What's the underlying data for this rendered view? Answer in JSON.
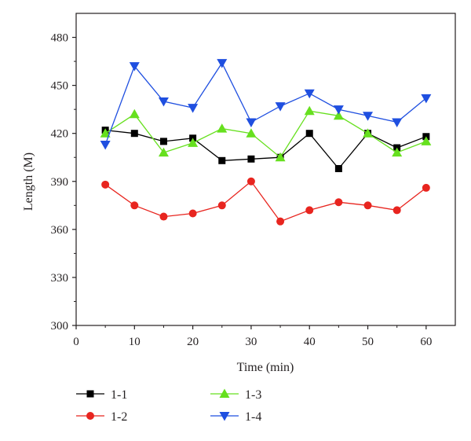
{
  "chart_data": {
    "type": "line",
    "xlabel": "Time (min)",
    "ylabel": "Length (M)",
    "xlim": [
      0,
      65
    ],
    "ylim": [
      300,
      495
    ],
    "x_ticks": [
      0,
      10,
      20,
      30,
      40,
      50,
      60
    ],
    "y_ticks": [
      300,
      330,
      360,
      390,
      420,
      450,
      480
    ],
    "x_tick_labels": [
      "0",
      "10",
      "20",
      "30",
      "40",
      "50",
      "60"
    ],
    "y_tick_labels": [
      "300",
      "330",
      "360",
      "390",
      "420",
      "450",
      "480"
    ],
    "grid": false,
    "legend_position": "bottom",
    "x": [
      5,
      10,
      15,
      20,
      25,
      30,
      35,
      40,
      45,
      50,
      55,
      60
    ],
    "series": [
      {
        "name": "1-1",
        "color": "#000000",
        "marker": "square",
        "values": [
          422,
          420,
          415,
          417,
          403,
          404,
          405,
          420,
          398,
          420,
          411,
          418
        ]
      },
      {
        "name": "1-2",
        "color": "#e8251f",
        "marker": "circle",
        "values": [
          388,
          375,
          368,
          370,
          375,
          390,
          365,
          372,
          377,
          375,
          372,
          386
        ]
      },
      {
        "name": "1-3",
        "color": "#66e01e",
        "marker": "triangle-up",
        "values": [
          420,
          432,
          408,
          414,
          423,
          420,
          405,
          434,
          431,
          420,
          408,
          415
        ]
      },
      {
        "name": "1-4",
        "color": "#1f4fe0",
        "marker": "triangle-down",
        "values": [
          413,
          462,
          440,
          436,
          464,
          427,
          437,
          445,
          435,
          431,
          427,
          442
        ]
      }
    ]
  }
}
